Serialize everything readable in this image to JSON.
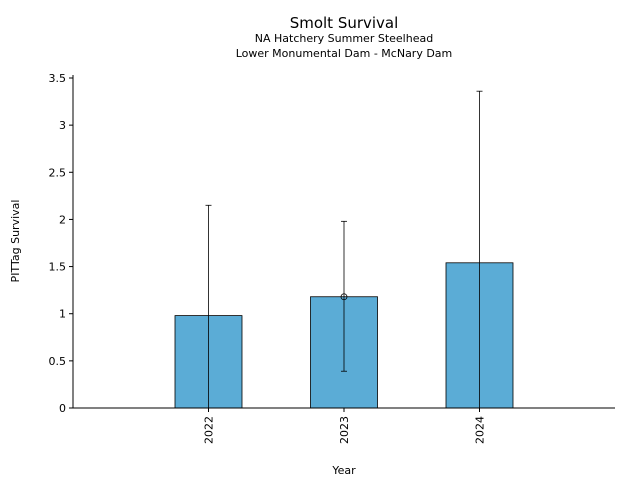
{
  "chart_data": {
    "type": "bar",
    "title": "Smolt Survival",
    "subtitle_lines": [
      "NA Hatchery Summer Steelhead",
      "Lower Monumental Dam - McNary Dam"
    ],
    "xlabel": "Year",
    "ylabel": "PITTag Survival",
    "categories": [
      "2022",
      "2023",
      "2024"
    ],
    "values": [
      0.98,
      1.18,
      1.54
    ],
    "error_low": [
      0.0,
      0.39,
      0.0
    ],
    "error_high": [
      2.15,
      1.98,
      3.36
    ],
    "point_marker": [
      null,
      1.18,
      null
    ],
    "ylim": [
      0,
      3.5
    ],
    "yticks": [
      0,
      0.5,
      1,
      1.5,
      2,
      2.5,
      3,
      3.5
    ],
    "ytick_labels": [
      "0",
      "0.5",
      "1",
      "1.5",
      "2",
      "2.5",
      "3",
      "3.5"
    ],
    "bar_color": "#5bacd6",
    "grid": false,
    "legend": "none"
  }
}
